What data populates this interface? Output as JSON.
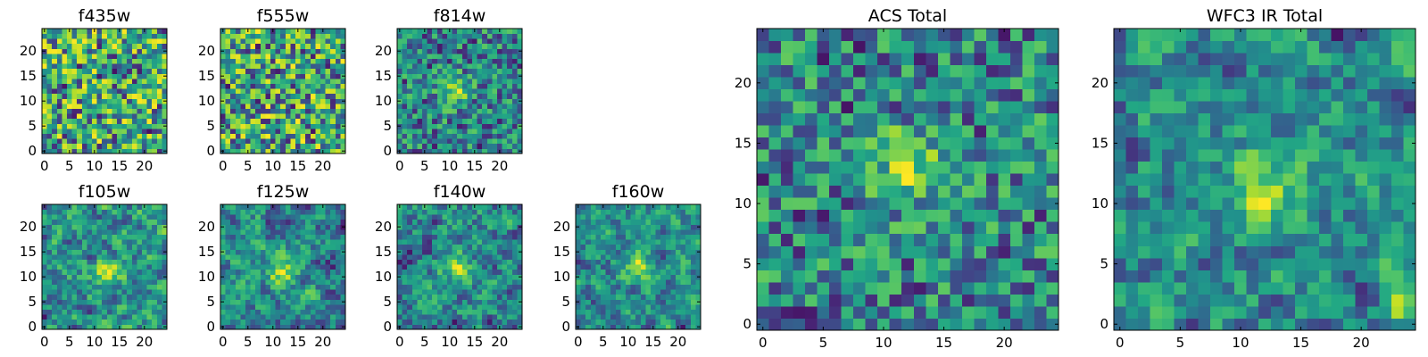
{
  "figure_title": "",
  "chart_data": [
    {
      "id": "f435w",
      "type": "heatmap",
      "title": "f435w",
      "grid_size": [
        25,
        25
      ],
      "x_ticks": [
        0,
        5,
        10,
        15,
        20
      ],
      "y_ticks": [
        0,
        5,
        10,
        15,
        20
      ],
      "xlim": [
        -0.5,
        24.5
      ],
      "ylim": [
        -0.5,
        24.5
      ],
      "colormap": "viridis",
      "pattern": "noise",
      "seed": 11,
      "blob": null,
      "hot_corner": null
    },
    {
      "id": "f555w",
      "type": "heatmap",
      "title": "f555w",
      "grid_size": [
        25,
        25
      ],
      "x_ticks": [
        0,
        5,
        10,
        15,
        20
      ],
      "y_ticks": [
        0,
        5,
        10,
        15,
        20
      ],
      "xlim": [
        -0.5,
        24.5
      ],
      "ylim": [
        -0.5,
        24.5
      ],
      "colormap": "viridis",
      "pattern": "noise",
      "seed": 23,
      "blob": null,
      "hot_corner": null
    },
    {
      "id": "f814w",
      "type": "heatmap",
      "title": "f814w",
      "grid_size": [
        25,
        25
      ],
      "x_ticks": [
        0,
        5,
        10,
        15,
        20
      ],
      "y_ticks": [
        0,
        5,
        10,
        15,
        20
      ],
      "xlim": [
        -0.5,
        24.5
      ],
      "ylim": [
        -0.5,
        24.5
      ],
      "colormap": "viridis",
      "pattern": "noise",
      "seed": 37,
      "blob": [
        11,
        12
      ],
      "hot_corner": null
    },
    {
      "id": "f105w",
      "type": "heatmap",
      "title": "f105w",
      "grid_size": [
        25,
        25
      ],
      "x_ticks": [
        0,
        5,
        10,
        15,
        20
      ],
      "y_ticks": [
        0,
        5,
        10,
        15,
        20
      ],
      "xlim": [
        -0.5,
        24.5
      ],
      "ylim": [
        -0.5,
        24.5
      ],
      "colormap": "viridis",
      "pattern": "smooth",
      "seed": 41,
      "blob": [
        13,
        11
      ],
      "hot_corner": null
    },
    {
      "id": "f125w",
      "type": "heatmap",
      "title": "f125w",
      "grid_size": [
        25,
        25
      ],
      "x_ticks": [
        0,
        5,
        10,
        15,
        20
      ],
      "y_ticks": [
        0,
        5,
        10,
        15,
        20
      ],
      "xlim": [
        -0.5,
        24.5
      ],
      "ylim": [
        -0.5,
        24.5
      ],
      "colormap": "viridis",
      "pattern": "smooth",
      "seed": 53,
      "blob": [
        12,
        11
      ],
      "hot_corner": null
    },
    {
      "id": "f140w",
      "type": "heatmap",
      "title": "f140w",
      "grid_size": [
        25,
        25
      ],
      "x_ticks": [
        0,
        5,
        10,
        15,
        20
      ],
      "y_ticks": [
        0,
        5,
        10,
        15,
        20
      ],
      "xlim": [
        -0.5,
        24.5
      ],
      "ylim": [
        -0.5,
        24.5
      ],
      "colormap": "viridis",
      "pattern": "smooth",
      "seed": 67,
      "blob": [
        11,
        12
      ],
      "hot_corner": null
    },
    {
      "id": "f160w",
      "type": "heatmap",
      "title": "f160w",
      "grid_size": [
        25,
        25
      ],
      "x_ticks": [
        0,
        5,
        10,
        15,
        20
      ],
      "y_ticks": [
        0,
        5,
        10,
        15,
        20
      ],
      "xlim": [
        -0.5,
        24.5
      ],
      "ylim": [
        -0.5,
        24.5
      ],
      "colormap": "viridis",
      "pattern": "smooth",
      "seed": 79,
      "blob": [
        12,
        12
      ],
      "hot_corner": null
    },
    {
      "id": "acs-total",
      "type": "heatmap",
      "title": "ACS Total",
      "grid_size": [
        25,
        25
      ],
      "x_ticks": [
        0,
        5,
        10,
        15,
        20
      ],
      "y_ticks": [
        0,
        5,
        10,
        15,
        20
      ],
      "xlim": [
        -0.5,
        24.5
      ],
      "ylim": [
        -0.5,
        24.5
      ],
      "colormap": "viridis",
      "pattern": "noise",
      "seed": 97,
      "blob": [
        12,
        13
      ],
      "hot_corner": null
    },
    {
      "id": "wfc3-ir-total",
      "type": "heatmap",
      "title": "WFC3 IR Total",
      "grid_size": [
        25,
        25
      ],
      "x_ticks": [
        0,
        5,
        10,
        15,
        20
      ],
      "y_ticks": [
        0,
        5,
        10,
        15,
        20
      ],
      "xlim": [
        -0.5,
        24.5
      ],
      "ylim": [
        -0.5,
        24.5
      ],
      "colormap": "viridis",
      "pattern": "smooth",
      "seed": 113,
      "blob": [
        12,
        11
      ],
      "hot_corner": [
        23,
        2
      ]
    }
  ]
}
